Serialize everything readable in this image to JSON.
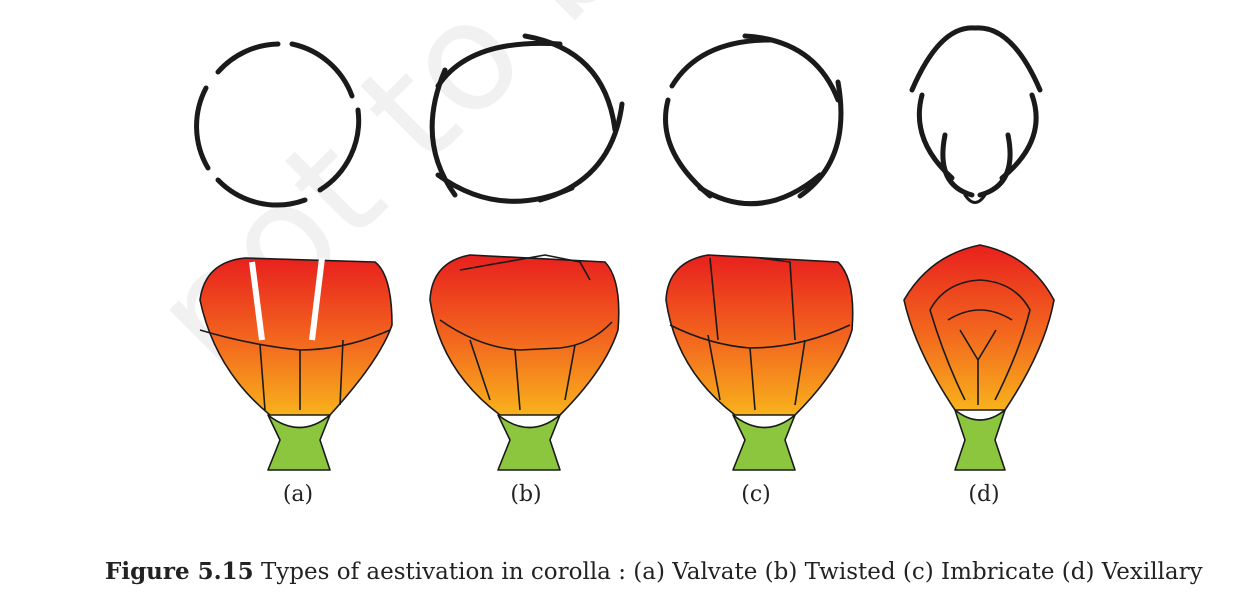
{
  "figure": {
    "panels": [
      {
        "label": "(a)",
        "type": "Valvate"
      },
      {
        "label": "(b)",
        "type": "Twisted"
      },
      {
        "label": "(c)",
        "type": "Imbricate"
      },
      {
        "label": "(d)",
        "type": "Vexillary"
      }
    ],
    "watermark": "not to be",
    "colors": {
      "petal_top": "#e8201e",
      "petal_bottom": "#f8b21c",
      "sepal": "#8cc63f",
      "outline": "#1a1a1a"
    }
  },
  "caption": {
    "number": "Figure 5.15",
    "text": " Types of aestivation in corolla : (a) Valvate (b) Twisted (c) Imbricate (d) Vexillary"
  }
}
